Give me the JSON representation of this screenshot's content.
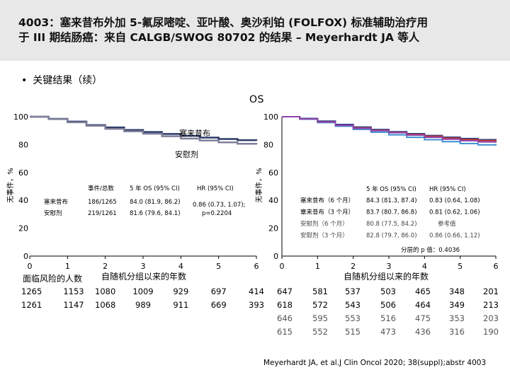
{
  "slide": {
    "title_line1": "4003：塞来昔布外加 5-氟尿嘧啶、亚叶酸、奥沙利铂 (FOLFOX) 标准辅助治疗用",
    "title_line2": "于 III 期结肠癌：来自 CALGB/SWOG 80702 的结果 – Meyerhardt JA 等人",
    "bullet": "关键结果（续）",
    "bullet_symbol": "•",
    "chart_title": "OS",
    "citation": "Meyerhardt JA, et al.J Clin Oncol 2020; 38(suppl);abstr 4003"
  },
  "colors": {
    "celecoxib": "#2b3a67",
    "placebo": "#7f7f9a",
    "arm_6m_cel": "#1f3c88",
    "arm_3m_cel": "#c0392b",
    "arm_6m_pla": "#3f8fd2",
    "arm_3m_pla": "#8e44ad",
    "right_legend_text": "#444444"
  },
  "left_table": {
    "headers": [
      "事件/总数",
      "5 年 OS (95% CI)",
      "HR (95% CI)"
    ],
    "rows": [
      {
        "arm": "塞来昔布",
        "events": "186/1265",
        "os5": "84.0 (81.9, 86.2)"
      },
      {
        "arm": "安慰剂",
        "events": "219/1261",
        "os5": "81.6 (79.6, 84.1)"
      }
    ],
    "hr_line1": "0.86 (0.73, 1.07);",
    "hr_line2": "p=0.2204"
  },
  "right_table": {
    "headers": [
      "5 年 OS (95% CI)",
      "HR (95% CI)"
    ],
    "rows": [
      {
        "arm": "塞来昔布（6 个月）",
        "os5": "84.3 (81.3, 87.4)",
        "hr": "0.83 (0.64, 1.08)"
      },
      {
        "arm": "塞来昔布（3 个月）",
        "os5": "83.7 (80.7, 86.8)",
        "hr": "0.81 (0.62, 1.06)"
      },
      {
        "arm": "安慰剂（6 个月）",
        "os5": "80.8 (77.5, 84.2)",
        "hr": "参考值"
      },
      {
        "arm": "安慰剂（3 个月）",
        "os5": "82.8 (79.7, 86.0)",
        "hr": "0.86 (0.66, 1.12)"
      }
    ],
    "interaction_p": "分层的 p 值：0.4036"
  },
  "risk_tables": {
    "left_title": "面临风险的人数",
    "left_rows": [
      [
        "1265",
        "1153",
        "1080",
        "1009",
        "929",
        "697",
        "414"
      ],
      [
        "1261",
        "1147",
        "1068",
        "989",
        "911",
        "669",
        "393"
      ]
    ],
    "right_rows": [
      [
        "647",
        "581",
        "537",
        "503",
        "465",
        "348",
        "201"
      ],
      [
        "618",
        "572",
        "543",
        "506",
        "464",
        "349",
        "213"
      ],
      [
        "646",
        "595",
        "553",
        "516",
        "475",
        "353",
        "203"
      ],
      [
        "615",
        "552",
        "515",
        "473",
        "436",
        "316",
        "190"
      ]
    ]
  },
  "chart_data": [
    {
      "type": "line",
      "title": "OS",
      "xlabel": "自随机分组以来的年数",
      "ylabel": "无事件，%",
      "xlim": [
        0,
        6
      ],
      "ylim": [
        0,
        100
      ],
      "xticks": [
        "0",
        "1",
        "2",
        "3",
        "4",
        "5",
        "6"
      ],
      "yticks": [
        "0",
        "20",
        "40",
        "60",
        "80",
        "100"
      ],
      "annotations": [
        "塞来昔布",
        "安慰剂"
      ],
      "series": [
        {
          "name": "塞来昔布",
          "x": [
            0,
            0.5,
            1,
            1.5,
            2,
            2.5,
            3,
            3.5,
            4,
            4.5,
            5,
            5.5,
            6
          ],
          "y": [
            100,
            98.5,
            96.5,
            94.0,
            92.3,
            90.5,
            89.0,
            87.6,
            86.3,
            85.0,
            84.0,
            83.2,
            82.8
          ]
        },
        {
          "name": "安慰剂",
          "x": [
            0,
            0.5,
            1,
            1.5,
            2,
            2.5,
            3,
            3.5,
            4,
            4.5,
            5,
            5.5,
            6
          ],
          "y": [
            100,
            98.3,
            96.0,
            93.5,
            91.3,
            89.5,
            87.8,
            86.0,
            84.3,
            82.9,
            81.6,
            80.6,
            80.0
          ]
        }
      ]
    },
    {
      "type": "line",
      "title": "OS",
      "xlabel": "自随机分组以来的年数",
      "ylabel": "无事件，%",
      "xlim": [
        0,
        6
      ],
      "ylim": [
        0,
        100
      ],
      "xticks": [
        "0",
        "1",
        "2",
        "3",
        "4",
        "5",
        "6"
      ],
      "yticks": [
        "0",
        "20",
        "40",
        "60",
        "80",
        "100"
      ],
      "series": [
        {
          "name": "塞来昔布（6 个月）",
          "x": [
            0,
            0.5,
            1,
            1.5,
            2,
            2.5,
            3,
            3.5,
            4,
            4.5,
            5,
            5.5,
            6
          ],
          "y": [
            100,
            98.7,
            96.8,
            94.4,
            92.6,
            90.8,
            89.2,
            87.8,
            86.5,
            85.3,
            84.3,
            83.5,
            83.0
          ]
        },
        {
          "name": "塞来昔布（3 个月）",
          "x": [
            0,
            0.5,
            1,
            1.5,
            2,
            2.5,
            3,
            3.5,
            4,
            4.5,
            5,
            5.5,
            6
          ],
          "y": [
            100,
            98.4,
            96.3,
            93.8,
            92.0,
            90.3,
            88.8,
            87.3,
            86.0,
            84.7,
            83.7,
            82.9,
            82.4
          ]
        },
        {
          "name": "安慰剂（6 个月）",
          "x": [
            0,
            0.5,
            1,
            1.5,
            2,
            2.5,
            3,
            3.5,
            4,
            4.5,
            5,
            5.5,
            6
          ],
          "y": [
            100,
            98.2,
            95.8,
            93.2,
            90.9,
            88.9,
            87.0,
            85.2,
            83.5,
            82.1,
            80.8,
            79.8,
            79.2
          ]
        },
        {
          "name": "安慰剂（3 个月）",
          "x": [
            0,
            0.5,
            1,
            1.5,
            2,
            2.5,
            3,
            3.5,
            4,
            4.5,
            5,
            5.5,
            6
          ],
          "y": [
            100,
            98.4,
            96.2,
            93.8,
            91.7,
            90.0,
            88.5,
            86.8,
            85.2,
            83.9,
            82.8,
            81.9,
            81.3
          ]
        }
      ]
    }
  ]
}
